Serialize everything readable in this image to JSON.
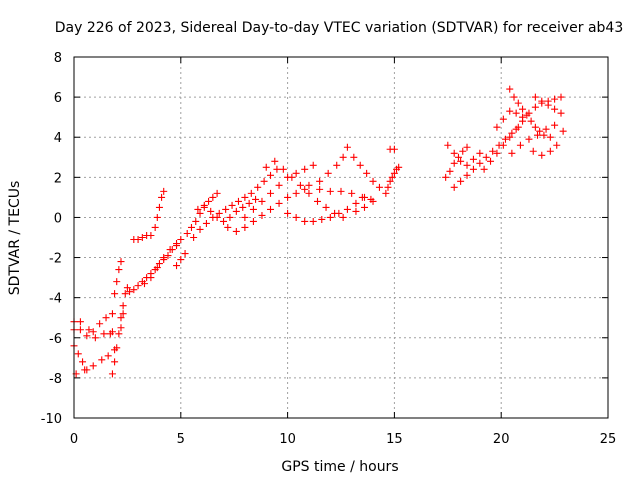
{
  "chart_data": {
    "type": "scatter",
    "title": "Day 226 of 2023, Sidereal Day-to-day VTEC variation (SDTVAR) for receiver ab43",
    "xlabel": "GPS time / hours",
    "ylabel": "SDTVAR / TECUs",
    "xlim": [
      0,
      25
    ],
    "ylim": [
      -10,
      8
    ],
    "xticks": [
      0,
      5,
      10,
      15,
      20,
      25
    ],
    "yticks": [
      -10,
      -8,
      -6,
      -4,
      -2,
      0,
      2,
      4,
      6,
      8
    ],
    "grid": true,
    "marker": "plus",
    "color": "#ff0000",
    "series": [
      {
        "values": [
          [
            0.0,
            -5.2
          ],
          [
            0.3,
            -5.6
          ],
          [
            0.6,
            -5.9
          ],
          [
            0.9,
            -5.7
          ],
          [
            1.2,
            -5.3
          ],
          [
            1.5,
            -5.0
          ],
          [
            0.0,
            -5.6
          ],
          [
            0.3,
            -5.2
          ],
          [
            0.7,
            -5.6
          ],
          [
            1.0,
            -6.0
          ],
          [
            1.4,
            -5.8
          ],
          [
            1.8,
            -5.7
          ],
          [
            0.0,
            -6.4
          ],
          [
            0.2,
            -6.8
          ],
          [
            0.4,
            -7.2
          ],
          [
            0.6,
            -7.6
          ],
          [
            0.1,
            -7.8
          ],
          [
            0.5,
            -7.6
          ],
          [
            0.9,
            -7.4
          ],
          [
            1.3,
            -7.1
          ],
          [
            1.6,
            -6.9
          ],
          [
            1.9,
            -6.6
          ],
          [
            1.8,
            -7.8
          ],
          [
            1.9,
            -7.2
          ],
          [
            2.0,
            -6.5
          ],
          [
            2.1,
            -5.8
          ],
          [
            2.2,
            -5.0
          ],
          [
            2.3,
            -4.4
          ],
          [
            2.4,
            -3.8
          ],
          [
            2.5,
            -3.5
          ],
          [
            2.3,
            -4.8
          ],
          [
            2.2,
            -5.5
          ],
          [
            1.7,
            -5.8
          ],
          [
            1.8,
            -4.8
          ],
          [
            1.9,
            -3.8
          ],
          [
            2.0,
            -3.2
          ],
          [
            2.1,
            -2.6
          ],
          [
            2.2,
            -2.2
          ],
          [
            2.6,
            -3.7
          ],
          [
            2.8,
            -3.6
          ],
          [
            3.0,
            -3.4
          ],
          [
            3.2,
            -3.2
          ],
          [
            3.4,
            -3.0
          ],
          [
            3.6,
            -2.8
          ],
          [
            3.8,
            -2.6
          ],
          [
            4.0,
            -2.3
          ],
          [
            4.2,
            -2.1
          ],
          [
            4.4,
            -1.9
          ],
          [
            4.6,
            -1.6
          ],
          [
            4.8,
            -1.4
          ],
          [
            5.0,
            -1.1
          ],
          [
            3.3,
            -3.3
          ],
          [
            3.6,
            -3.0
          ],
          [
            3.9,
            -2.5
          ],
          [
            4.2,
            -2.0
          ],
          [
            4.5,
            -1.6
          ],
          [
            4.8,
            -1.3
          ],
          [
            5.2,
            -1.8
          ],
          [
            5.0,
            -2.1
          ],
          [
            4.8,
            -2.4
          ],
          [
            2.8,
            -1.1
          ],
          [
            3.0,
            -1.1
          ],
          [
            3.2,
            -1.0
          ],
          [
            3.4,
            -0.9
          ],
          [
            3.6,
            -0.9
          ],
          [
            3.8,
            -0.5
          ],
          [
            3.9,
            0.0
          ],
          [
            4.0,
            0.5
          ],
          [
            4.1,
            1.0
          ],
          [
            4.2,
            1.3
          ],
          [
            5.3,
            -0.8
          ],
          [
            5.5,
            -0.5
          ],
          [
            5.7,
            -0.2
          ],
          [
            5.9,
            0.2
          ],
          [
            6.1,
            0.5
          ],
          [
            6.3,
            0.8
          ],
          [
            6.5,
            1.0
          ],
          [
            6.7,
            1.2
          ],
          [
            5.6,
            -1.0
          ],
          [
            5.9,
            -0.6
          ],
          [
            6.2,
            -0.3
          ],
          [
            6.5,
            0.0
          ],
          [
            6.8,
            0.2
          ],
          [
            7.1,
            0.4
          ],
          [
            7.4,
            0.6
          ],
          [
            7.7,
            0.8
          ],
          [
            8.0,
            1.0
          ],
          [
            8.3,
            1.2
          ],
          [
            8.6,
            1.5
          ],
          [
            8.9,
            1.8
          ],
          [
            9.2,
            2.1
          ],
          [
            9.5,
            2.4
          ],
          [
            5.8,
            0.4
          ],
          [
            6.1,
            0.6
          ],
          [
            6.4,
            0.3
          ],
          [
            6.7,
            0.0
          ],
          [
            7.0,
            -0.2
          ],
          [
            7.3,
            0.0
          ],
          [
            7.6,
            0.3
          ],
          [
            7.9,
            0.5
          ],
          [
            8.2,
            0.7
          ],
          [
            8.5,
            0.9
          ],
          [
            7.2,
            -0.5
          ],
          [
            7.6,
            -0.7
          ],
          [
            8.0,
            -0.5
          ],
          [
            8.4,
            -0.2
          ],
          [
            8.8,
            0.1
          ],
          [
            9.2,
            0.4
          ],
          [
            9.6,
            0.7
          ],
          [
            10.0,
            1.0
          ],
          [
            10.4,
            1.2
          ],
          [
            10.8,
            1.4
          ],
          [
            8.0,
            0.0
          ],
          [
            8.4,
            0.4
          ],
          [
            8.8,
            0.8
          ],
          [
            9.2,
            1.2
          ],
          [
            9.6,
            1.6
          ],
          [
            10.0,
            2.0
          ],
          [
            10.4,
            2.2
          ],
          [
            10.8,
            2.4
          ],
          [
            11.2,
            2.6
          ],
          [
            9.0,
            2.5
          ],
          [
            9.4,
            2.8
          ],
          [
            9.8,
            2.4
          ],
          [
            10.2,
            2.0
          ],
          [
            10.6,
            1.6
          ],
          [
            11.0,
            1.2
          ],
          [
            11.4,
            0.8
          ],
          [
            11.8,
            0.5
          ],
          [
            12.2,
            0.2
          ],
          [
            12.6,
            0.0
          ],
          [
            10.0,
            0.2
          ],
          [
            10.4,
            0.0
          ],
          [
            10.8,
            -0.2
          ],
          [
            11.2,
            -0.2
          ],
          [
            11.6,
            -0.1
          ],
          [
            12.0,
            0.0
          ],
          [
            12.4,
            0.2
          ],
          [
            12.8,
            0.4
          ],
          [
            13.2,
            0.7
          ],
          [
            13.6,
            1.0
          ],
          [
            11.5,
            1.8
          ],
          [
            11.9,
            2.2
          ],
          [
            12.3,
            2.6
          ],
          [
            12.6,
            3.0
          ],
          [
            12.8,
            3.5
          ],
          [
            13.1,
            3.0
          ],
          [
            13.4,
            2.6
          ],
          [
            13.7,
            2.2
          ],
          [
            14.0,
            1.8
          ],
          [
            14.3,
            1.5
          ],
          [
            11.0,
            1.6
          ],
          [
            11.5,
            1.4
          ],
          [
            12.0,
            1.3
          ],
          [
            12.5,
            1.3
          ],
          [
            13.0,
            1.2
          ],
          [
            13.5,
            1.0
          ],
          [
            14.0,
            0.8
          ],
          [
            13.2,
            0.3
          ],
          [
            13.6,
            0.5
          ],
          [
            13.9,
            0.9
          ],
          [
            14.6,
            1.2
          ],
          [
            14.7,
            1.5
          ],
          [
            14.8,
            1.8
          ],
          [
            14.9,
            2.0
          ],
          [
            15.0,
            2.2
          ],
          [
            15.1,
            2.4
          ],
          [
            15.2,
            2.5
          ],
          [
            14.8,
            3.4
          ],
          [
            15.0,
            3.4
          ],
          [
            17.4,
            2.0
          ],
          [
            17.6,
            2.3
          ],
          [
            17.8,
            2.7
          ],
          [
            18.0,
            3.0
          ],
          [
            18.2,
            3.3
          ],
          [
            18.4,
            3.5
          ],
          [
            17.5,
            3.6
          ],
          [
            17.8,
            3.2
          ],
          [
            18.1,
            2.8
          ],
          [
            18.4,
            2.6
          ],
          [
            18.7,
            2.9
          ],
          [
            19.0,
            3.2
          ],
          [
            17.8,
            1.5
          ],
          [
            18.1,
            1.8
          ],
          [
            18.4,
            2.1
          ],
          [
            18.7,
            2.4
          ],
          [
            19.0,
            2.7
          ],
          [
            19.3,
            3.0
          ],
          [
            19.6,
            3.3
          ],
          [
            19.9,
            3.6
          ],
          [
            20.2,
            3.9
          ],
          [
            20.5,
            4.2
          ],
          [
            20.8,
            4.5
          ],
          [
            19.2,
            2.4
          ],
          [
            19.5,
            2.8
          ],
          [
            19.8,
            3.2
          ],
          [
            20.1,
            3.6
          ],
          [
            20.4,
            4.0
          ],
          [
            20.7,
            4.4
          ],
          [
            21.0,
            4.8
          ],
          [
            21.3,
            5.2
          ],
          [
            21.6,
            5.5
          ],
          [
            21.9,
            5.7
          ],
          [
            22.2,
            5.8
          ],
          [
            22.5,
            5.9
          ],
          [
            22.8,
            6.0
          ],
          [
            20.4,
            6.4
          ],
          [
            20.6,
            6.0
          ],
          [
            20.8,
            5.7
          ],
          [
            21.0,
            5.4
          ],
          [
            21.2,
            5.1
          ],
          [
            21.4,
            4.8
          ],
          [
            21.6,
            4.5
          ],
          [
            21.8,
            4.3
          ],
          [
            22.0,
            4.1
          ],
          [
            22.3,
            4.0
          ],
          [
            20.5,
            3.2
          ],
          [
            20.9,
            3.6
          ],
          [
            21.3,
            3.9
          ],
          [
            21.7,
            4.1
          ],
          [
            22.1,
            4.4
          ],
          [
            22.5,
            4.6
          ],
          [
            22.9,
            4.3
          ],
          [
            21.5,
            3.3
          ],
          [
            21.9,
            3.1
          ],
          [
            22.3,
            3.3
          ],
          [
            22.6,
            3.6
          ],
          [
            19.8,
            4.5
          ],
          [
            20.1,
            4.9
          ],
          [
            20.4,
            5.3
          ],
          [
            20.7,
            5.2
          ],
          [
            21.0,
            5.0
          ],
          [
            21.6,
            6.0
          ],
          [
            21.9,
            5.8
          ],
          [
            22.2,
            5.6
          ],
          [
            22.5,
            5.4
          ],
          [
            22.8,
            5.2
          ]
        ]
      }
    ]
  }
}
